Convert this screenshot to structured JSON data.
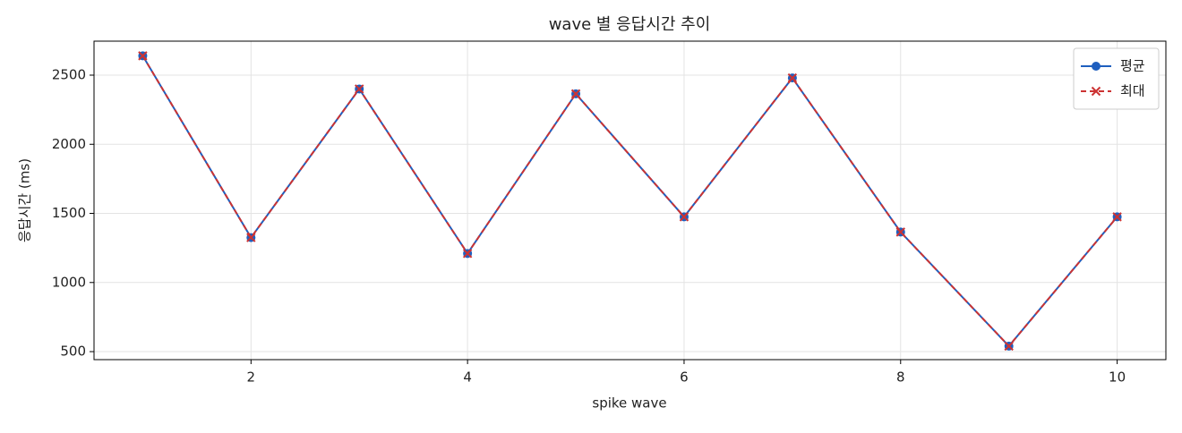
{
  "chart_data": {
    "type": "line",
    "title": "wave 별 응답시간 추이",
    "x_label": "spike wave",
    "y_label": "응답시간 (ms)",
    "x": [
      1,
      2,
      3,
      4,
      5,
      6,
      7,
      8,
      9,
      10
    ],
    "series": [
      {
        "name": "평균",
        "color": "#1f5fbf",
        "marker": "circle",
        "dash": false,
        "values": [
          2640,
          1325,
          2400,
          1210,
          2365,
          1475,
          2480,
          1365,
          540,
          1475
        ]
      },
      {
        "name": "최대",
        "color": "#cc3333",
        "marker": "x",
        "dash": true,
        "values": [
          2640,
          1325,
          2400,
          1210,
          2365,
          1475,
          2480,
          1365,
          540,
          1475
        ]
      }
    ],
    "xlim": [
      0.55,
      10.45
    ],
    "xticks": [
      2,
      4,
      6,
      8,
      10
    ],
    "ylim": [
      442,
      2746
    ],
    "yticks": [
      500,
      1000,
      1500,
      2000,
      2500
    ],
    "grid": true,
    "legend": "upper right"
  }
}
